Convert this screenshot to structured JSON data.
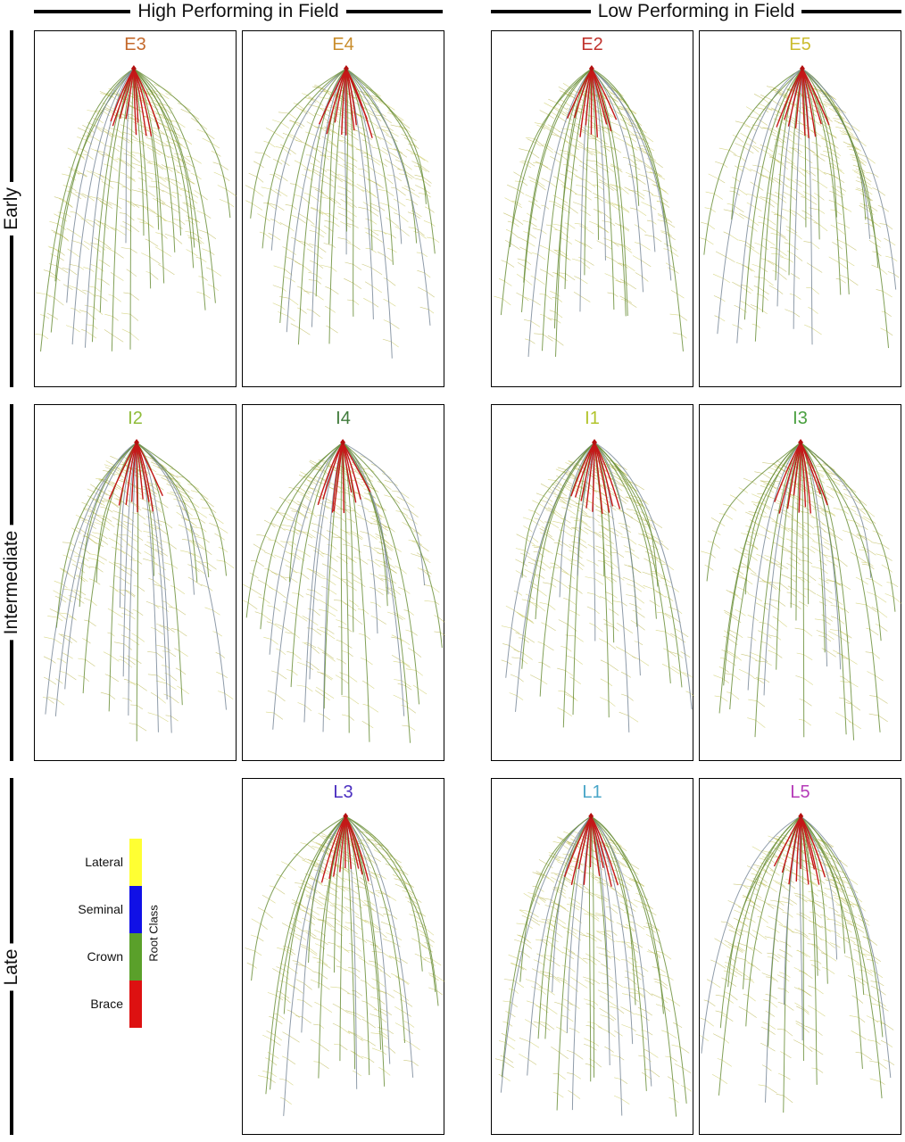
{
  "headers": {
    "high": "High Performing in Field",
    "low": "Low Performing in Field"
  },
  "rows": [
    "Early",
    "Intermediate",
    "Late"
  ],
  "panels": [
    {
      "id": "E3",
      "label": "E3",
      "color": "#c4692c",
      "row": 0,
      "col": 0,
      "seed": 3
    },
    {
      "id": "E4",
      "label": "E4",
      "color": "#c98c2a",
      "row": 0,
      "col": 1,
      "seed": 4
    },
    {
      "id": "E2",
      "label": "E2",
      "color": "#c0322c",
      "row": 0,
      "col": 2,
      "seed": 2
    },
    {
      "id": "E5",
      "label": "E5",
      "color": "#cbbc2e",
      "row": 0,
      "col": 3,
      "seed": 5
    },
    {
      "id": "I2",
      "label": "I2",
      "color": "#8fbc3a",
      "row": 1,
      "col": 0,
      "seed": 12
    },
    {
      "id": "I4",
      "label": "I4",
      "color": "#3f7a3a",
      "row": 1,
      "col": 1,
      "seed": 14
    },
    {
      "id": "I1",
      "label": "I1",
      "color": "#b2c42c",
      "row": 1,
      "col": 2,
      "seed": 11
    },
    {
      "id": "I3",
      "label": "I3",
      "color": "#4aa040",
      "row": 1,
      "col": 3,
      "seed": 13
    },
    {
      "id": "L3",
      "label": "L3",
      "color": "#4a2ec0",
      "row": 2,
      "col": 1,
      "seed": 23
    },
    {
      "id": "L1",
      "label": "L1",
      "color": "#4aa6c8",
      "row": 2,
      "col": 2,
      "seed": 21
    },
    {
      "id": "L5",
      "label": "L5",
      "color": "#b53ab8",
      "row": 2,
      "col": 3,
      "seed": 25
    }
  ],
  "legend": {
    "title": "Root Class",
    "items": [
      {
        "label": "Lateral",
        "color": "#ffff33"
      },
      {
        "label": "Seminal",
        "color": "#1010e6"
      },
      {
        "label": "Crown",
        "color": "#5aa02a"
      },
      {
        "label": "Brace",
        "color": "#dd1111"
      }
    ]
  }
}
